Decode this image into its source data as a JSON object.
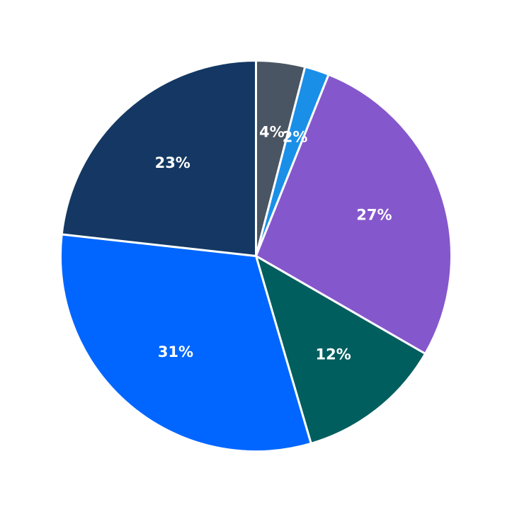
{
  "chart_data": {
    "type": "pie",
    "start_angle_deg": 90,
    "direction": "clockwise",
    "slices": [
      {
        "label": "4%",
        "value": 4,
        "color": "#4a5563"
      },
      {
        "label": "2%",
        "value": 2,
        "color": "#1a8fe8"
      },
      {
        "label": "27%",
        "value": 27,
        "color": "#8557cc"
      },
      {
        "label": "12%",
        "value": 12,
        "color": "#005e5e"
      },
      {
        "label": "31%",
        "value": 31,
        "color": "#0066ff"
      },
      {
        "label": "23%",
        "value": 23,
        "color": "#143863"
      }
    ],
    "edge_color": "#ffffff"
  }
}
